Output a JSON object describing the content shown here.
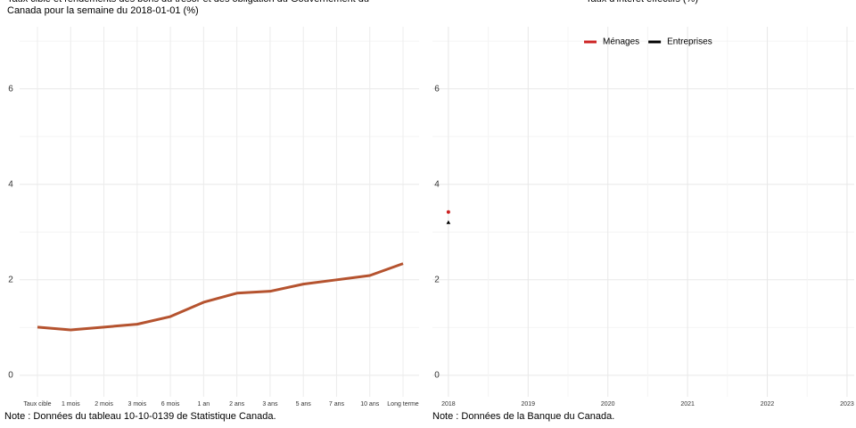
{
  "chart_data": [
    {
      "type": "line",
      "title": [
        "Taux cible et rendements des bons du trésor et des obligation du Gouvernement du",
        "Canada pour la semaine du 2018-01-01 (%)"
      ],
      "categories": [
        "Taux cible",
        "1 mois",
        "2 mois",
        "3 mois",
        "6 mois",
        "1 an",
        "2 ans",
        "3 ans",
        "5 ans",
        "7 ans",
        "10 ans",
        "Long terme"
      ],
      "values": [
        1.01,
        0.95,
        1.01,
        1.07,
        1.23,
        1.53,
        1.72,
        1.76,
        1.91,
        2.0,
        2.09,
        2.34
      ],
      "color": "#b5532f",
      "ylim": [
        -0.45,
        7.3
      ],
      "yticks": [
        0,
        2,
        4,
        6
      ],
      "ygrid_minor": [
        1,
        3,
        5,
        7
      ],
      "grid": true,
      "note": "Note : Données du tableau 10-10-0139 de Statistique Canada."
    },
    {
      "type": "scatter",
      "title": [
        "Taux d'intérêt effectifs (%)"
      ],
      "series": [
        {
          "name": "Ménages",
          "color": "#cc2222",
          "marker": "circle",
          "x": [
            2018
          ],
          "values": [
            3.42
          ]
        },
        {
          "name": "Entreprises",
          "color": "#000000",
          "marker": "triangle",
          "x": [
            2018
          ],
          "values": [
            3.2
          ]
        }
      ],
      "xlim": [
        2017.8,
        2023.09
      ],
      "xticks": [
        2018,
        2019,
        2020,
        2021,
        2022,
        2023
      ],
      "xgrid_minor": [
        2018.5,
        2019.5,
        2020.5,
        2021.5,
        2022.5
      ],
      "ylim": [
        -0.45,
        7.3
      ],
      "yticks": [
        0,
        2,
        4,
        6
      ],
      "ygrid_minor": [
        1,
        3,
        5,
        7
      ],
      "grid": true,
      "legend": "top",
      "note": "Note : Données de la Banque du Canada."
    }
  ]
}
